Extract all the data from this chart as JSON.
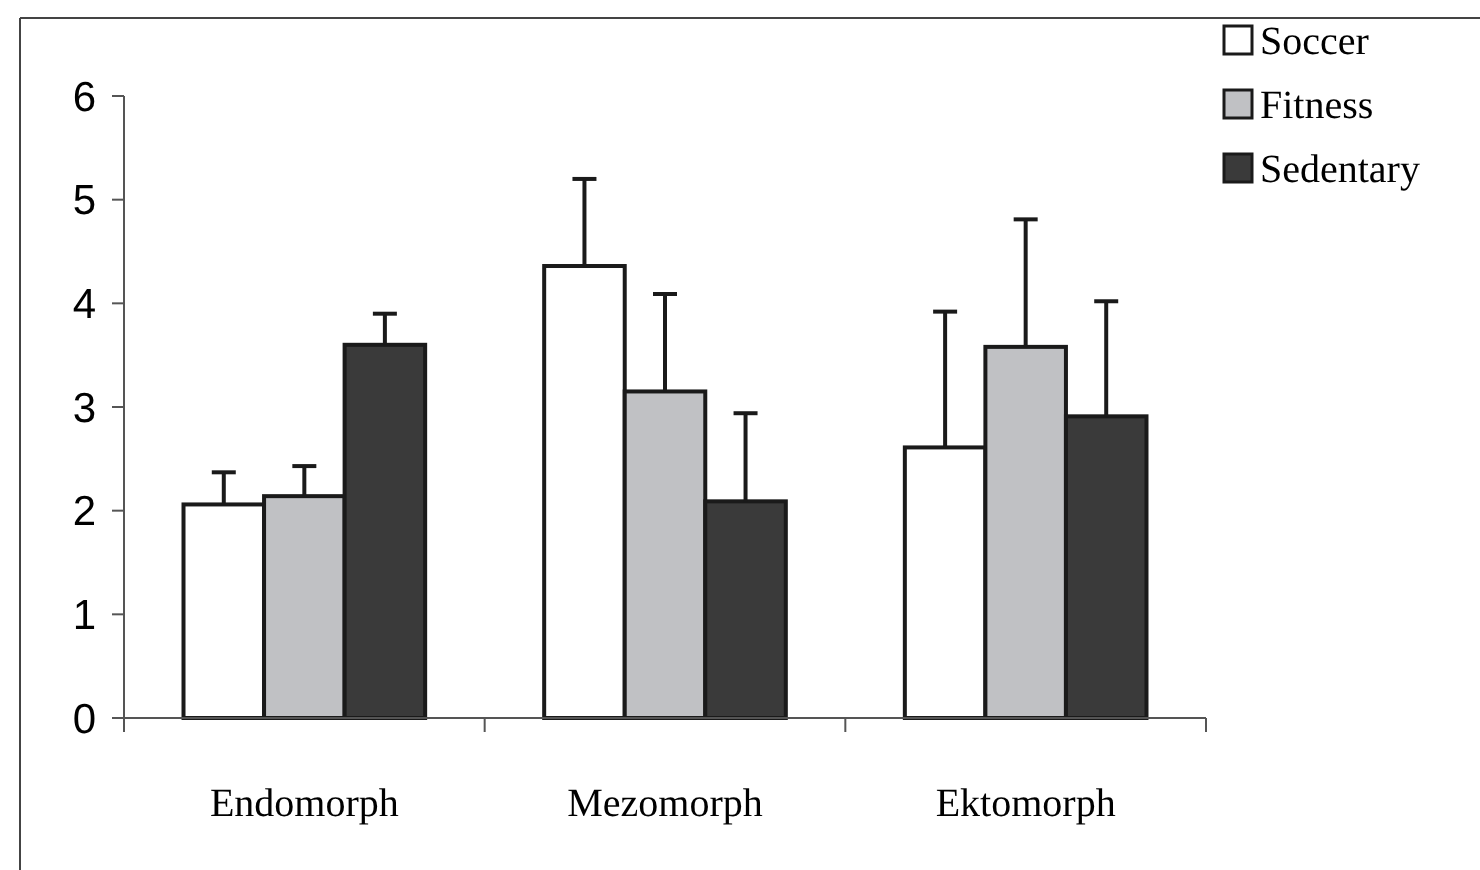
{
  "chart_data": {
    "type": "bar",
    "categories": [
      "Endomorph",
      "Mezomorph",
      "Ektomorph"
    ],
    "series": [
      {
        "name": "Soccer",
        "color": "#ffffff",
        "values": [
          2.06,
          4.36,
          2.61
        ],
        "errors": [
          [
            2.06,
            2.37
          ],
          [
            4.36,
            5.2
          ],
          [
            2.61,
            3.92
          ]
        ]
      },
      {
        "name": "Fitness",
        "color": "#c0c1c4",
        "values": [
          2.14,
          3.15,
          3.58
        ],
        "errors": [
          [
            2.14,
            2.43
          ],
          [
            3.15,
            4.09
          ],
          [
            3.58,
            4.81
          ]
        ]
      },
      {
        "name": "Sedentary",
        "color": "#3a3a3a",
        "values": [
          3.6,
          2.09,
          2.91
        ],
        "errors": [
          [
            3.6,
            3.9
          ],
          [
            2.09,
            2.94
          ],
          [
            2.91,
            4.02
          ]
        ]
      }
    ],
    "ylim": [
      0,
      6
    ],
    "yticks": [
      0,
      1,
      2,
      3,
      4,
      5,
      6
    ],
    "grid": false,
    "legend": "top right"
  }
}
